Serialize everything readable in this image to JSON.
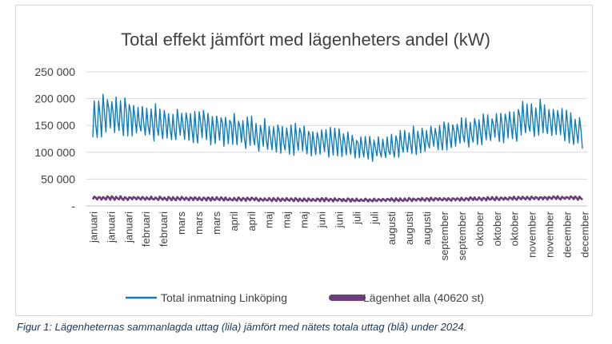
{
  "chart_data": {
    "type": "line",
    "title": "Total effekt jämfört med lägenheters andel (kW)",
    "xlabel": "",
    "ylabel": "",
    "ylim": [
      0,
      250000
    ],
    "yticks": [
      {
        "value": 250000,
        "label": "250 000"
      },
      {
        "value": 200000,
        "label": "200 000"
      },
      {
        "value": 150000,
        "label": "150 000"
      },
      {
        "value": 100000,
        "label": "100 000"
      },
      {
        "value": 50000,
        "label": "50 000"
      },
      {
        "value": 0,
        "label": "-"
      }
    ],
    "categories": [
      "januari",
      "januari",
      "januari",
      "februari",
      "februari",
      "mars",
      "mars",
      "mars",
      "april",
      "april",
      "maj",
      "maj",
      "maj",
      "juni",
      "juni",
      "juli",
      "juli",
      "augusti",
      "augusti",
      "augusti",
      "september",
      "september",
      "oktober",
      "oktober",
      "oktober",
      "november",
      "november",
      "december",
      "december"
    ],
    "series": [
      {
        "name": "Total inmatning Linköping",
        "color": "#0e7cc1",
        "envelope_note": "weekly min/max in kW",
        "min": [
          115000,
          130000,
          125000,
          120000,
          112000,
          115000,
          110000,
          110000,
          105000,
          100000,
          95000,
          92000,
          90000,
          88000,
          85000,
          82000,
          80000,
          82000,
          88000,
          95000,
          100000,
          103000,
          108000,
          112000,
          113000,
          120000,
          125000,
          118000,
          102000
        ],
        "max": [
          205000,
          215000,
          200000,
          195000,
          190000,
          185000,
          180000,
          178000,
          175000,
          170000,
          165000,
          162000,
          155000,
          152000,
          145000,
          135000,
          130000,
          140000,
          148000,
          155000,
          160000,
          165000,
          170000,
          178000,
          185000,
          205000,
          195000,
          190000,
          160000
        ]
      },
      {
        "name": "Lägenhet alla (40620 st)",
        "color": "#6b3e7a",
        "min": [
          11000,
          11000,
          10500,
          10500,
          10000,
          10000,
          9500,
          9500,
          9000,
          9000,
          8500,
          8500,
          8000,
          8000,
          8000,
          7500,
          7500,
          8000,
          8000,
          8500,
          9000,
          9000,
          9500,
          10000,
          10500,
          11000,
          11000,
          11500,
          11000
        ],
        "max": [
          18000,
          18500,
          18000,
          17500,
          17500,
          17000,
          16500,
          16500,
          16000,
          16000,
          15500,
          15500,
          15000,
          15000,
          14500,
          14000,
          14000,
          14500,
          15000,
          15500,
          16000,
          16000,
          16500,
          17000,
          17500,
          18000,
          18000,
          18500,
          17000
        ]
      }
    ],
    "legend": "bottom"
  },
  "caption": "Figur 1: Lägenheternas sammanlagda uttag (lila) jämfört med nätets totala uttag (blå) under 2024."
}
